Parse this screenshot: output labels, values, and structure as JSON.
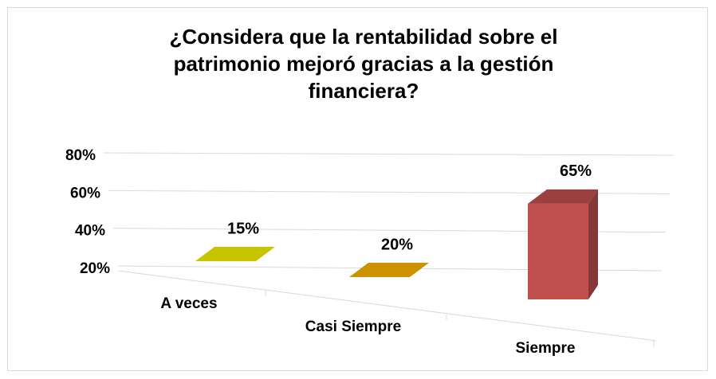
{
  "chart_data": {
    "type": "bar3d",
    "title": [
      "¿Considera que la rentabilidad sobre el",
      "patrimonio mejoró gracias a la gestión",
      "financiera?"
    ],
    "categories": [
      "A veces",
      "Casi Siempre",
      "Siempre"
    ],
    "values": [
      15,
      20,
      65
    ],
    "value_labels": [
      "15%",
      "20%",
      "65%"
    ],
    "colors": [
      "#c8c400",
      "#cc9200",
      "#c0504d"
    ],
    "ylim": [
      20,
      80
    ],
    "yticks": [
      {
        "value": 20,
        "label": "20%"
      },
      {
        "value": 40,
        "label": "40%"
      },
      {
        "value": 60,
        "label": "60%"
      },
      {
        "value": 80,
        "label": "80%"
      }
    ],
    "grid": true
  }
}
